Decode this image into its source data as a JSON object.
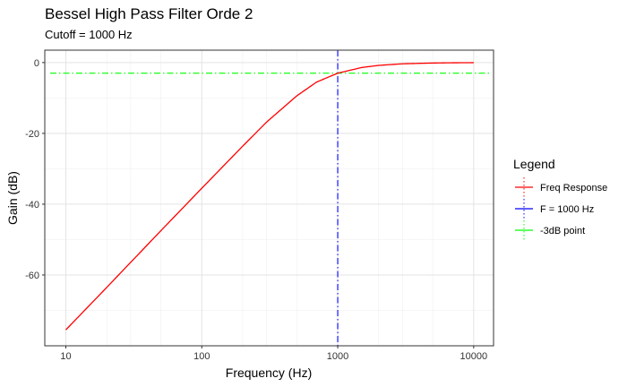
{
  "chart_data": {
    "type": "line",
    "title": "Bessel High Pass Filter Orde 2",
    "subtitle": "Cutoff = 1000 Hz",
    "xlabel": "Frequency (Hz)",
    "ylabel": "Gain (dB)",
    "x_scale": "log",
    "xlim": [
      7,
      14000
    ],
    "ylim": [
      -80,
      3.5
    ],
    "x_ticks": [
      10,
      100,
      1000,
      10000
    ],
    "x_tick_labels": [
      "10",
      "100",
      "1000",
      "10000"
    ],
    "y_ticks": [
      0,
      -20,
      -40,
      -60
    ],
    "y_tick_labels": [
      "0",
      "-20",
      "-40",
      "-60"
    ],
    "grid": true,
    "legend": {
      "title": "Legend",
      "placement": "right",
      "entries": [
        {
          "label": "Freq Response",
          "color": "#ff0000",
          "style": "solid"
        },
        {
          "label": "F = 1000 Hz",
          "color": "#0000ff",
          "style": "dashdot"
        },
        {
          "label": "-3dB point",
          "color": "#00ff00",
          "style": "dashdot"
        }
      ]
    },
    "series": [
      {
        "name": "Freq Response",
        "color": "#ff0000",
        "x": [
          10,
          20,
          50,
          100,
          200,
          300,
          500,
          700,
          1000,
          1500,
          2000,
          3000,
          5000,
          7000,
          10000
        ],
        "y": [
          -75.5,
          -63.5,
          -47.5,
          -35.5,
          -23.6,
          -16.8,
          -9.4,
          -5.5,
          -3.0,
          -1.4,
          -0.8,
          -0.35,
          -0.13,
          -0.06,
          -0.03
        ]
      }
    ],
    "reference_lines": [
      {
        "name": "F = 1000 Hz",
        "orientation": "vertical",
        "value": 1000,
        "color": "#0000ff",
        "style": "dashdot"
      },
      {
        "name": "-3dB point",
        "orientation": "horizontal",
        "value": -3,
        "color": "#00ff00",
        "style": "dashdot"
      }
    ]
  }
}
